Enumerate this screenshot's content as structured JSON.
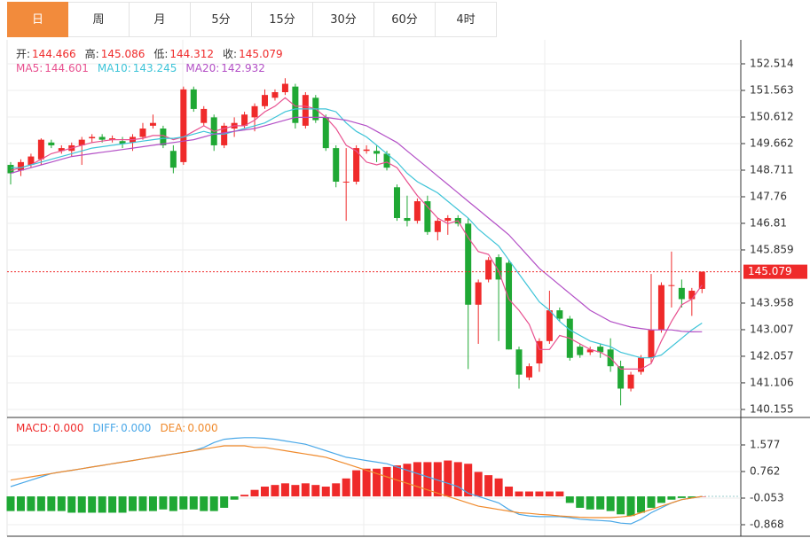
{
  "tabs": [
    "日",
    "周",
    "月",
    "5分",
    "15分",
    "30分",
    "60分",
    "4时"
  ],
  "selected_tab": 0,
  "chart_data": [
    {
      "type": "candlestick",
      "up_color": "#ef2a2a",
      "down_color": "#1fa834",
      "info": [
        {
          "label": "开:",
          "value": 144.466
        },
        {
          "label": "高:",
          "value": 145.086
        },
        {
          "label": "低:",
          "value": 144.312
        },
        {
          "label": "收:",
          "value": 145.079
        }
      ],
      "open": [
        148.9,
        148.7,
        148.9,
        149.1,
        149.7,
        149.4,
        149.4,
        149.6,
        149.85,
        149.9,
        149.8,
        149.75,
        149.7,
        149.9,
        150.3,
        150.2,
        149.4,
        149.0,
        151.6,
        150.4,
        150.6,
        149.6,
        150.2,
        150.3,
        150.6,
        151.0,
        151.3,
        151.5,
        151.7,
        150.3,
        151.3,
        150.6,
        149.5,
        148.3,
        148.3,
        149.4,
        149.4,
        149.3,
        148.1,
        147.0,
        146.9,
        147.6,
        146.5,
        146.9,
        147.0,
        146.8,
        143.9,
        144.8,
        145.6,
        145.4,
        142.3,
        141.3,
        141.8,
        142.6,
        143.7,
        143.4,
        142.4,
        142.2,
        142.4,
        142.3,
        141.7,
        140.9,
        141.5,
        142.0,
        143.0,
        144.6,
        144.5,
        144.1,
        144.466
      ],
      "close": [
        148.6,
        149.0,
        149.2,
        149.8,
        149.6,
        149.5,
        149.6,
        149.8,
        149.9,
        149.8,
        149.85,
        149.65,
        149.9,
        150.2,
        150.4,
        149.6,
        148.8,
        151.6,
        150.9,
        150.9,
        149.6,
        150.3,
        150.4,
        150.7,
        151.0,
        151.4,
        151.5,
        151.8,
        150.4,
        151.4,
        150.5,
        149.5,
        148.3,
        148.3,
        149.5,
        149.45,
        149.3,
        148.8,
        147.0,
        146.9,
        147.6,
        146.5,
        146.9,
        147.0,
        146.8,
        143.9,
        144.7,
        145.5,
        144.8,
        142.3,
        141.4,
        141.7,
        142.6,
        143.7,
        143.4,
        142.0,
        142.1,
        142.3,
        142.2,
        141.7,
        140.9,
        141.4,
        142.0,
        143.0,
        144.6,
        144.6,
        144.1,
        144.4,
        145.079
      ],
      "high": [
        149.0,
        149.1,
        149.3,
        149.85,
        149.8,
        149.6,
        149.7,
        149.9,
        150.0,
        150.0,
        149.95,
        149.9,
        150.0,
        150.4,
        150.7,
        150.3,
        149.6,
        151.7,
        151.7,
        151.0,
        150.7,
        150.4,
        150.6,
        150.8,
        151.1,
        151.6,
        151.6,
        152.0,
        151.8,
        151.5,
        151.4,
        150.7,
        149.6,
        149.5,
        149.6,
        149.6,
        149.6,
        149.4,
        148.2,
        147.8,
        147.7,
        147.8,
        147.0,
        147.1,
        147.1,
        147.0,
        144.8,
        145.6,
        145.7,
        145.5,
        142.4,
        141.8,
        142.7,
        144.4,
        143.8,
        143.5,
        142.5,
        142.4,
        142.5,
        142.7,
        141.9,
        141.5,
        142.1,
        145.0,
        144.7,
        145.8,
        144.8,
        144.5,
        145.086
      ],
      "low": [
        148.2,
        148.5,
        148.8,
        148.9,
        149.5,
        149.3,
        149.2,
        148.9,
        149.7,
        149.7,
        149.7,
        149.5,
        149.4,
        149.8,
        150.2,
        149.5,
        148.6,
        148.9,
        150.8,
        150.3,
        149.4,
        149.5,
        149.9,
        150.2,
        150.1,
        150.9,
        151.2,
        151.4,
        150.2,
        150.2,
        150.4,
        149.4,
        148.1,
        146.9,
        148.2,
        149.3,
        149.0,
        148.7,
        146.9,
        146.7,
        146.8,
        146.4,
        146.2,
        146.4,
        146.7,
        141.6,
        142.5,
        144.7,
        142.6,
        142.3,
        140.9,
        141.2,
        141.5,
        142.5,
        143.3,
        141.9,
        142.0,
        142.1,
        142.0,
        141.5,
        140.3,
        140.8,
        141.4,
        141.8,
        142.9,
        143.8,
        143.8,
        143.5,
        144.312
      ],
      "series": [
        {
          "name": "MA5:",
          "color": "#e8508f",
          "legend_value": 144.601,
          "values": [
            148.7,
            148.8,
            148.9,
            149.1,
            149.3,
            149.4,
            149.5,
            149.6,
            149.7,
            149.75,
            149.8,
            149.8,
            149.8,
            149.85,
            149.95,
            149.95,
            149.8,
            149.9,
            150.1,
            150.3,
            150.1,
            150.2,
            150.3,
            150.3,
            150.5,
            150.8,
            151.0,
            151.3,
            151.0,
            151.0,
            150.9,
            150.6,
            150.2,
            149.6,
            149.4,
            149.0,
            148.9,
            149.0,
            148.8,
            148.3,
            147.8,
            147.4,
            147.0,
            146.8,
            146.9,
            146.3,
            145.8,
            145.7,
            145.1,
            144.1,
            143.7,
            143.2,
            142.3,
            142.3,
            142.8,
            142.7,
            142.5,
            142.3,
            142.2,
            142.0,
            141.6,
            141.6,
            141.6,
            141.8,
            142.6,
            143.3,
            143.9,
            144.1,
            144.601
          ]
        },
        {
          "name": "MA10:",
          "color": "#3ec4d8",
          "legend_value": 143.245,
          "values": [
            148.8,
            148.8,
            148.9,
            149.0,
            149.1,
            149.2,
            149.3,
            149.4,
            149.5,
            149.55,
            149.6,
            149.65,
            149.7,
            149.75,
            149.8,
            149.85,
            149.85,
            149.9,
            150.0,
            150.1,
            150.0,
            150.0,
            150.1,
            150.2,
            150.3,
            150.4,
            150.6,
            150.8,
            150.9,
            150.9,
            150.9,
            150.9,
            150.8,
            150.4,
            150.1,
            149.9,
            149.6,
            149.3,
            149.0,
            148.6,
            148.3,
            148.1,
            147.9,
            147.6,
            147.3,
            147.0,
            146.6,
            146.3,
            146.0,
            145.5,
            145.0,
            144.5,
            144.0,
            143.7,
            143.3,
            143.0,
            142.8,
            142.6,
            142.5,
            142.4,
            142.2,
            142.1,
            142.0,
            142.0,
            142.1,
            142.4,
            142.7,
            143.0,
            143.245
          ]
        },
        {
          "name": "MA20:",
          "color": "#b34fc6",
          "legend_value": 142.932,
          "values": [
            148.6,
            148.7,
            148.8,
            148.9,
            149.0,
            149.1,
            149.2,
            149.25,
            149.3,
            149.35,
            149.4,
            149.45,
            149.5,
            149.55,
            149.6,
            149.65,
            149.7,
            149.75,
            149.8,
            149.9,
            150.0,
            150.05,
            150.1,
            150.15,
            150.2,
            150.3,
            150.4,
            150.5,
            150.6,
            150.6,
            150.6,
            150.6,
            150.55,
            150.5,
            150.4,
            150.3,
            150.1,
            149.9,
            149.7,
            149.4,
            149.1,
            148.8,
            148.5,
            148.2,
            147.9,
            147.6,
            147.3,
            147.0,
            146.7,
            146.4,
            146.0,
            145.6,
            145.2,
            144.9,
            144.6,
            144.3,
            144.0,
            143.7,
            143.5,
            143.3,
            143.2,
            143.1,
            143.05,
            143.0,
            143.0,
            143.0,
            142.95,
            142.93,
            142.932
          ]
        }
      ],
      "last_price": 145.079,
      "last_price_color": "#ef2a2a",
      "ylim": [
        139.9,
        153.37
      ],
      "yticks": [
        140.155,
        141.106,
        142.057,
        143.007,
        143.958,
        145.859,
        146.81,
        147.76,
        148.711,
        149.662,
        150.612,
        151.563,
        152.514
      ],
      "grid": true
    },
    {
      "type": "macd",
      "up_color": "#ef2a2a",
      "down_color": "#1fa834",
      "histogram": {
        "name": "MACD:",
        "legend_value": {
          "value": 0,
          "label": "0.000"
        },
        "color": "#ef2a2a",
        "values": [
          -0.45,
          -0.45,
          -0.45,
          -0.45,
          -0.45,
          -0.45,
          -0.5,
          -0.5,
          -0.5,
          -0.5,
          -0.5,
          -0.5,
          -0.45,
          -0.45,
          -0.45,
          -0.4,
          -0.45,
          -0.4,
          -0.4,
          -0.45,
          -0.45,
          -0.35,
          -0.1,
          0.05,
          0.2,
          0.3,
          0.35,
          0.4,
          0.35,
          0.4,
          0.35,
          0.3,
          0.4,
          0.55,
          0.8,
          0.85,
          0.85,
          0.9,
          0.95,
          1.0,
          1.05,
          1.05,
          1.05,
          1.1,
          1.05,
          1.0,
          0.75,
          0.65,
          0.55,
          0.3,
          0.15,
          0.15,
          0.15,
          0.15,
          0.15,
          -0.2,
          -0.35,
          -0.4,
          -0.4,
          -0.45,
          -0.55,
          -0.6,
          -0.5,
          -0.35,
          -0.2,
          -0.1,
          -0.05,
          -0.05,
          0
        ]
      },
      "series": [
        {
          "name": "DIFF:",
          "color": "#4aa8e8",
          "legend_value": {
            "value": 0,
            "label": "0.000"
          },
          "values": [
            0.3,
            0.4,
            0.5,
            0.6,
            0.7,
            0.75,
            0.8,
            0.85,
            0.9,
            0.95,
            1.0,
            1.05,
            1.1,
            1.15,
            1.2,
            1.25,
            1.3,
            1.35,
            1.4,
            1.5,
            1.65,
            1.75,
            1.78,
            1.8,
            1.8,
            1.78,
            1.75,
            1.7,
            1.65,
            1.6,
            1.5,
            1.4,
            1.3,
            1.2,
            1.15,
            1.1,
            1.05,
            1.0,
            0.9,
            0.8,
            0.7,
            0.6,
            0.5,
            0.4,
            0.3,
            0.1,
            0,
            -0.1,
            -0.2,
            -0.4,
            -0.55,
            -0.6,
            -0.62,
            -0.62,
            -0.62,
            -0.65,
            -0.7,
            -0.72,
            -0.74,
            -0.76,
            -0.82,
            -0.84,
            -0.7,
            -0.5,
            -0.35,
            -0.2,
            -0.1,
            -0.05,
            0
          ]
        },
        {
          "name": "DEA:",
          "color": "#f08a2c",
          "legend_value": {
            "value": 0,
            "label": "0.000"
          },
          "values": [
            0.5,
            0.55,
            0.6,
            0.65,
            0.7,
            0.75,
            0.8,
            0.85,
            0.9,
            0.95,
            1.0,
            1.05,
            1.1,
            1.15,
            1.2,
            1.25,
            1.3,
            1.35,
            1.4,
            1.45,
            1.5,
            1.55,
            1.55,
            1.55,
            1.5,
            1.5,
            1.45,
            1.4,
            1.35,
            1.3,
            1.25,
            1.2,
            1.1,
            1.0,
            0.9,
            0.8,
            0.7,
            0.6,
            0.5,
            0.4,
            0.3,
            0.2,
            0.1,
            0,
            -0.1,
            -0.2,
            -0.3,
            -0.35,
            -0.4,
            -0.45,
            -0.5,
            -0.52,
            -0.55,
            -0.57,
            -0.6,
            -0.62,
            -0.64,
            -0.65,
            -0.65,
            -0.65,
            -0.63,
            -0.6,
            -0.5,
            -0.4,
            -0.3,
            -0.2,
            -0.1,
            -0.05,
            0
          ]
        }
      ],
      "ylim": [
        -1.221,
        2.365
      ],
      "yticks": [
        -0.868,
        -0.053,
        0.762,
        1.577
      ],
      "grid": true
    }
  ]
}
